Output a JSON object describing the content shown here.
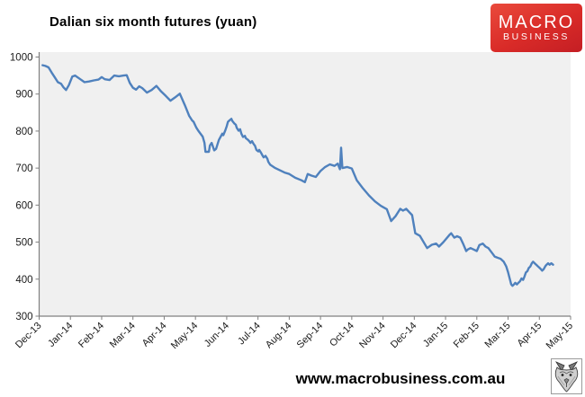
{
  "header": {
    "title": "Dalian six month futures (yuan)",
    "logo": {
      "line1": "MACRO",
      "line2": "BUSINESS",
      "bg_color": "#d92b28",
      "text_color": "#ffffff"
    }
  },
  "footer": {
    "website": "www.macrobusiness.com.au",
    "logo_icon": "wolf-icon"
  },
  "chart_data": {
    "type": "line",
    "title": "Dalian six month futures (yuan)",
    "xlabel": "",
    "ylabel": "",
    "ylim": [
      300,
      1000
    ],
    "y_ticks": [
      1000,
      900,
      800,
      700,
      600,
      500,
      400,
      300
    ],
    "x_tick_labels": [
      "Dec-13",
      "Jan-14",
      "Feb-14",
      "Mar-14",
      "Apr-14",
      "May-14",
      "Jun-14",
      "Jul-14",
      "Aug-14",
      "Sep-14",
      "Oct-14",
      "Nov-14",
      "Dec-14",
      "Jan-15",
      "Feb-15",
      "Mar-15",
      "Apr-15",
      "May-15"
    ],
    "grid": false,
    "legend": "none",
    "line_color": "#4f81bd",
    "plot_bg": "#f0f0f0",
    "axis_color": "#808080",
    "label_color": "#1a1a1a",
    "series": [
      {
        "name": "Dalian six month futures (yuan)",
        "x_unit": "month-index (0 = Dec-13 tick, 17 = May-15 tick)",
        "points": [
          [
            0.11,
            978
          ],
          [
            0.2,
            976
          ],
          [
            0.3,
            972
          ],
          [
            0.4,
            958
          ],
          [
            0.5,
            945
          ],
          [
            0.6,
            932
          ],
          [
            0.7,
            928
          ],
          [
            0.78,
            918
          ],
          [
            0.86,
            911
          ],
          [
            0.95,
            924
          ],
          [
            1.06,
            947
          ],
          [
            1.15,
            950
          ],
          [
            1.3,
            941
          ],
          [
            1.45,
            932
          ],
          [
            1.6,
            934
          ],
          [
            1.75,
            937
          ],
          [
            1.9,
            939
          ],
          [
            2.0,
            946
          ],
          [
            2.1,
            940
          ],
          [
            2.25,
            938
          ],
          [
            2.4,
            950
          ],
          [
            2.55,
            948
          ],
          [
            2.7,
            950
          ],
          [
            2.8,
            951
          ],
          [
            2.9,
            930
          ],
          [
            3.0,
            917
          ],
          [
            3.1,
            912
          ],
          [
            3.2,
            921
          ],
          [
            3.3,
            916
          ],
          [
            3.45,
            904
          ],
          [
            3.6,
            911
          ],
          [
            3.75,
            922
          ],
          [
            3.9,
            907
          ],
          [
            4.05,
            895
          ],
          [
            4.2,
            882
          ],
          [
            4.35,
            891
          ],
          [
            4.5,
            901
          ],
          [
            4.66,
            870
          ],
          [
            4.8,
            841
          ],
          [
            4.89,
            829
          ],
          [
            4.94,
            825
          ],
          [
            5.03,
            809
          ],
          [
            5.09,
            801
          ],
          [
            5.23,
            785
          ],
          [
            5.29,
            768
          ],
          [
            5.32,
            744
          ],
          [
            5.43,
            744
          ],
          [
            5.46,
            761
          ],
          [
            5.52,
            768
          ],
          [
            5.6,
            748
          ],
          [
            5.66,
            752
          ],
          [
            5.75,
            776
          ],
          [
            5.8,
            784
          ],
          [
            5.86,
            793
          ],
          [
            5.89,
            789
          ],
          [
            5.95,
            801
          ],
          [
            6.0,
            813
          ],
          [
            6.04,
            825
          ],
          [
            6.09,
            829
          ],
          [
            6.15,
            833
          ],
          [
            6.18,
            827
          ],
          [
            6.24,
            821
          ],
          [
            6.29,
            817
          ],
          [
            6.32,
            809
          ],
          [
            6.38,
            801
          ],
          [
            6.43,
            805
          ],
          [
            6.47,
            793
          ],
          [
            6.52,
            784
          ],
          [
            6.58,
            787
          ],
          [
            6.61,
            781
          ],
          [
            6.67,
            777
          ],
          [
            6.72,
            773
          ],
          [
            6.76,
            768
          ],
          [
            6.81,
            773
          ],
          [
            6.87,
            764
          ],
          [
            6.9,
            761
          ],
          [
            6.95,
            749
          ],
          [
            7.01,
            745
          ],
          [
            7.04,
            749
          ],
          [
            7.1,
            741
          ],
          [
            7.15,
            733
          ],
          [
            7.18,
            729
          ],
          [
            7.24,
            733
          ],
          [
            7.3,
            725
          ],
          [
            7.33,
            717
          ],
          [
            7.39,
            709
          ],
          [
            7.55,
            700
          ],
          [
            7.7,
            694
          ],
          [
            7.85,
            688
          ],
          [
            8.0,
            684
          ],
          [
            8.19,
            674
          ],
          [
            8.39,
            667
          ],
          [
            8.5,
            662
          ],
          [
            8.59,
            684
          ],
          [
            8.7,
            680
          ],
          [
            8.85,
            676
          ],
          [
            9.0,
            692
          ],
          [
            9.15,
            703
          ],
          [
            9.3,
            710
          ],
          [
            9.45,
            706
          ],
          [
            9.55,
            712
          ],
          [
            9.62,
            697
          ],
          [
            9.66,
            755
          ],
          [
            9.7,
            700
          ],
          [
            9.85,
            703
          ],
          [
            10.0,
            699
          ],
          [
            10.16,
            667
          ],
          [
            10.35,
            646
          ],
          [
            10.55,
            626
          ],
          [
            10.74,
            610
          ],
          [
            10.93,
            598
          ],
          [
            11.12,
            589
          ],
          [
            11.26,
            557
          ],
          [
            11.4,
            570
          ],
          [
            11.55,
            590
          ],
          [
            11.64,
            585
          ],
          [
            11.74,
            590
          ],
          [
            11.85,
            580
          ],
          [
            11.93,
            573
          ],
          [
            12.03,
            524
          ],
          [
            12.18,
            517
          ],
          [
            12.41,
            484
          ],
          [
            12.56,
            493
          ],
          [
            12.7,
            496
          ],
          [
            12.79,
            488
          ],
          [
            12.93,
            500
          ],
          [
            13.13,
            520
          ],
          [
            13.18,
            524
          ],
          [
            13.28,
            512
          ],
          [
            13.37,
            516
          ],
          [
            13.47,
            512
          ],
          [
            13.56,
            496
          ],
          [
            13.66,
            476
          ],
          [
            13.71,
            480
          ],
          [
            13.8,
            484
          ],
          [
            13.9,
            480
          ],
          [
            14.0,
            476
          ],
          [
            14.08,
            492
          ],
          [
            14.19,
            496
          ],
          [
            14.28,
            488
          ],
          [
            14.37,
            484
          ],
          [
            14.52,
            467
          ],
          [
            14.57,
            461
          ],
          [
            14.66,
            458
          ],
          [
            14.76,
            455
          ],
          [
            14.86,
            447
          ],
          [
            14.94,
            435
          ],
          [
            15.0,
            419
          ],
          [
            15.05,
            402
          ],
          [
            15.1,
            386
          ],
          [
            15.14,
            382
          ],
          [
            15.19,
            386
          ],
          [
            15.23,
            390
          ],
          [
            15.28,
            386
          ],
          [
            15.33,
            390
          ],
          [
            15.38,
            394
          ],
          [
            15.43,
            402
          ],
          [
            15.48,
            398
          ],
          [
            15.52,
            406
          ],
          [
            15.57,
            418
          ],
          [
            15.62,
            422
          ],
          [
            15.66,
            430
          ],
          [
            15.71,
            434
          ],
          [
            15.76,
            443
          ],
          [
            15.8,
            447
          ],
          [
            15.85,
            443
          ],
          [
            15.9,
            439
          ],
          [
            15.95,
            435
          ],
          [
            16.0,
            431
          ],
          [
            16.05,
            427
          ],
          [
            16.09,
            423
          ],
          [
            16.14,
            427
          ],
          [
            16.19,
            435
          ],
          [
            16.23,
            439
          ],
          [
            16.28,
            443
          ],
          [
            16.33,
            439
          ],
          [
            16.38,
            443
          ],
          [
            16.44,
            439
          ]
        ]
      }
    ]
  }
}
